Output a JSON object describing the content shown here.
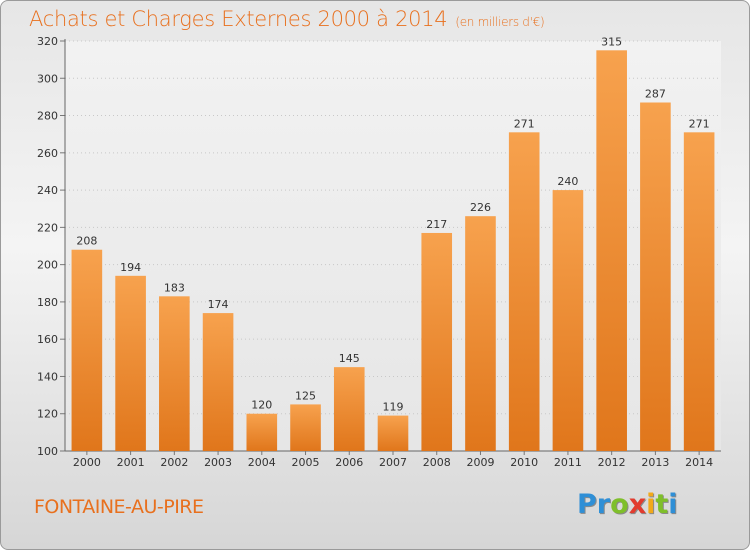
{
  "title": "Achats et Charges Externes 2000 à 2014",
  "subtitle": "(en milliers d'€)",
  "location": "FONTAINE-AU-PIRE",
  "brand": {
    "letters": [
      "P",
      "r",
      "o",
      "x",
      "i",
      "t",
      "i"
    ],
    "colors": [
      "#2f8fd6",
      "#2f8fd6",
      "#7fbf2a",
      "#e23b2e",
      "#f2a91a",
      "#7fbf2a",
      "#2f8fd6"
    ]
  },
  "colors": {
    "accent": "#e8701e",
    "bar_top": "#f7a24e",
    "bar_bottom": "#e0761b"
  },
  "chart_data": {
    "type": "bar",
    "categories": [
      "2000",
      "2001",
      "2002",
      "2003",
      "2004",
      "2005",
      "2006",
      "2007",
      "2008",
      "2009",
      "2010",
      "2011",
      "2012",
      "2013",
      "2014"
    ],
    "values": [
      208,
      194,
      183,
      174,
      120,
      125,
      145,
      119,
      217,
      226,
      271,
      240,
      315,
      287,
      271
    ],
    "title": "Achats et Charges Externes 2000 à 2014",
    "xlabel": "",
    "ylabel": "",
    "ylim": [
      100,
      320
    ],
    "yticks": [
      100,
      120,
      140,
      160,
      180,
      200,
      220,
      240,
      260,
      280,
      300,
      320
    ],
    "grid": true,
    "legend": "none"
  }
}
